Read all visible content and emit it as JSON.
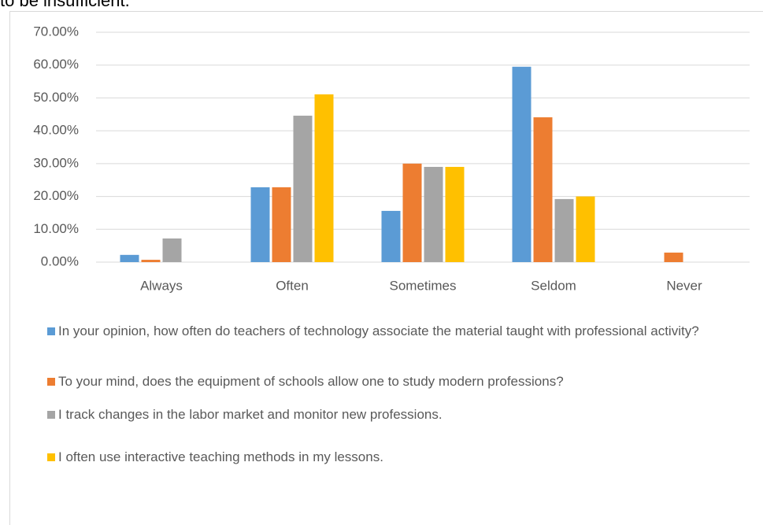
{
  "text_above": "to be insufficient.",
  "chart_data": {
    "type": "bar",
    "categories": [
      "Always",
      "Often",
      "Sometimes",
      "Seldom",
      "Never"
    ],
    "series": [
      {
        "name": "In your opinion, how often do teachers of technology associate the material taught with professional activity?",
        "color": "#5b9bd5",
        "values": [
          2.2,
          22.8,
          15.6,
          59.5,
          0
        ]
      },
      {
        "name": "To your mind, does the equipment of schools allow one to study modern professions?",
        "color": "#ed7d31",
        "values": [
          0.7,
          22.8,
          30.0,
          44.1,
          2.9
        ]
      },
      {
        "name": "I track changes in the labor market and monitor new professions.",
        "color": "#a5a5a5",
        "values": [
          7.2,
          44.6,
          29.0,
          19.2,
          0
        ]
      },
      {
        "name": "I often use interactive teaching methods in my lessons.",
        "color": "#ffc000",
        "values": [
          0,
          51.1,
          29.0,
          20.0,
          0
        ]
      }
    ],
    "ylim": [
      0,
      70
    ],
    "yticks": [
      {
        "value": 0,
        "label": "0.00%"
      },
      {
        "value": 10,
        "label": "10.00%"
      },
      {
        "value": 20,
        "label": "20.00%"
      },
      {
        "value": 30,
        "label": "30.00%"
      },
      {
        "value": 40,
        "label": "40.00%"
      },
      {
        "value": 50,
        "label": "50.00%"
      },
      {
        "value": 60,
        "label": "60.00%"
      },
      {
        "value": 70,
        "label": "70.00%"
      }
    ],
    "grid": true,
    "legend": "bottom"
  }
}
